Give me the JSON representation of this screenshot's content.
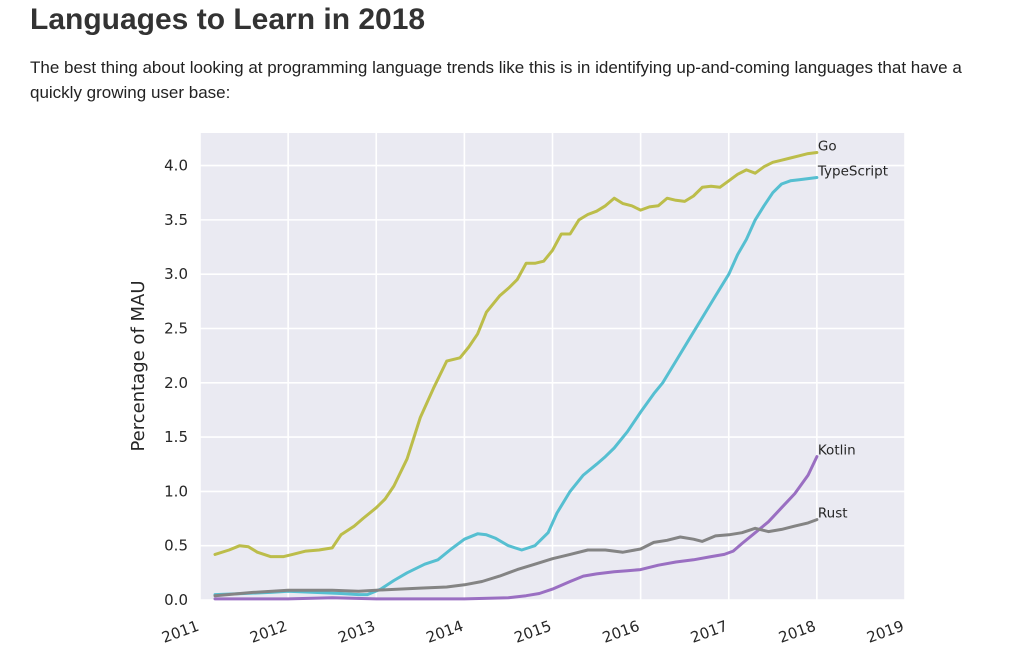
{
  "page": {
    "title": "Languages to Learn in 2018",
    "intro": "The best thing about looking at programming language trends like this is in identifying up-and-coming languages that have a quickly growing user base:"
  },
  "chart_data": {
    "type": "line",
    "title": "",
    "xlabel": "",
    "ylabel": "Percentage of MAU",
    "xlim": [
      2011,
      2019
    ],
    "ylim": [
      0,
      4.3
    ],
    "xticks": [
      2011,
      2012,
      2013,
      2014,
      2015,
      2016,
      2017,
      2018,
      2019
    ],
    "yticks": [
      0.0,
      0.5,
      1.0,
      1.5,
      2.0,
      2.5,
      3.0,
      3.5,
      4.0
    ],
    "grid": true,
    "legend": "none (series labeled at line ends)",
    "series": [
      {
        "name": "Go",
        "color": "#bcbd4a",
        "x": [
          2011.17,
          2011.33,
          2011.45,
          2011.55,
          2011.65,
          2011.8,
          2011.95,
          2012.05,
          2012.2,
          2012.35,
          2012.5,
          2012.6,
          2012.75,
          2012.85,
          2013.0,
          2013.1,
          2013.2,
          2013.35,
          2013.5,
          2013.65,
          2013.8,
          2013.95,
          2014.05,
          2014.15,
          2014.25,
          2014.4,
          2014.5,
          2014.6,
          2014.7,
          2014.8,
          2014.9,
          2015.0,
          2015.1,
          2015.2,
          2015.3,
          2015.4,
          2015.5,
          2015.6,
          2015.7,
          2015.8,
          2015.9,
          2016.0,
          2016.1,
          2016.2,
          2016.3,
          2016.4,
          2016.5,
          2016.6,
          2016.7,
          2016.8,
          2016.9,
          2017.0,
          2017.1,
          2017.2,
          2017.3,
          2017.4,
          2017.5,
          2017.6,
          2017.7,
          2017.8,
          2017.9,
          2018.0
        ],
        "values": [
          0.42,
          0.46,
          0.5,
          0.49,
          0.44,
          0.4,
          0.4,
          0.42,
          0.45,
          0.46,
          0.48,
          0.6,
          0.68,
          0.75,
          0.85,
          0.93,
          1.05,
          1.3,
          1.68,
          1.95,
          2.2,
          2.23,
          2.33,
          2.45,
          2.65,
          2.8,
          2.87,
          2.95,
          3.1,
          3.1,
          3.12,
          3.22,
          3.37,
          3.37,
          3.5,
          3.55,
          3.58,
          3.63,
          3.7,
          3.65,
          3.63,
          3.59,
          3.62,
          3.63,
          3.7,
          3.68,
          3.67,
          3.72,
          3.8,
          3.81,
          3.8,
          3.86,
          3.92,
          3.96,
          3.93,
          3.99,
          4.03,
          4.05,
          4.07,
          4.09,
          4.11,
          4.12
        ]
      },
      {
        "name": "TypeScript",
        "color": "#56bfd1",
        "x": [
          2011.17,
          2011.5,
          2011.8,
          2012.0,
          2012.3,
          2012.6,
          2012.8,
          2012.9,
          2013.05,
          2013.2,
          2013.35,
          2013.55,
          2013.7,
          2013.85,
          2014.0,
          2014.15,
          2014.25,
          2014.35,
          2014.5,
          2014.65,
          2014.8,
          2014.95,
          2015.05,
          2015.2,
          2015.35,
          2015.5,
          2015.6,
          2015.7,
          2015.85,
          2016.0,
          2016.15,
          2016.25,
          2016.4,
          2016.55,
          2016.7,
          2016.85,
          2017.0,
          2017.1,
          2017.2,
          2017.3,
          2017.4,
          2017.5,
          2017.6,
          2017.7,
          2017.8,
          2017.9,
          2018.0
        ],
        "values": [
          0.05,
          0.06,
          0.07,
          0.08,
          0.07,
          0.06,
          0.05,
          0.05,
          0.1,
          0.18,
          0.25,
          0.33,
          0.37,
          0.47,
          0.56,
          0.61,
          0.6,
          0.57,
          0.5,
          0.46,
          0.5,
          0.62,
          0.8,
          1.0,
          1.15,
          1.25,
          1.32,
          1.4,
          1.55,
          1.73,
          1.9,
          2.0,
          2.2,
          2.4,
          2.6,
          2.8,
          3.0,
          3.18,
          3.32,
          3.5,
          3.63,
          3.75,
          3.83,
          3.86,
          3.87,
          3.88,
          3.89
        ]
      },
      {
        "name": "Kotlin",
        "color": "#9a6fc2",
        "x": [
          2011.17,
          2012.0,
          2012.5,
          2013.0,
          2013.5,
          2014.0,
          2014.5,
          2014.7,
          2014.85,
          2015.0,
          2015.2,
          2015.35,
          2015.5,
          2015.7,
          2015.85,
          2016.0,
          2016.2,
          2016.4,
          2016.6,
          2016.8,
          2016.95,
          2017.05,
          2017.15,
          2017.3,
          2017.45,
          2017.6,
          2017.75,
          2017.9,
          2018.0
        ],
        "values": [
          0.01,
          0.01,
          0.02,
          0.01,
          0.01,
          0.01,
          0.02,
          0.04,
          0.06,
          0.1,
          0.17,
          0.22,
          0.24,
          0.26,
          0.27,
          0.28,
          0.32,
          0.35,
          0.37,
          0.4,
          0.42,
          0.45,
          0.52,
          0.62,
          0.72,
          0.85,
          0.98,
          1.15,
          1.32
        ]
      },
      {
        "name": "Rust",
        "color": "#848484",
        "x": [
          2011.17,
          2011.6,
          2012.0,
          2012.5,
          2012.8,
          2013.0,
          2013.5,
          2013.8,
          2014.0,
          2014.2,
          2014.4,
          2014.6,
          2014.8,
          2015.0,
          2015.2,
          2015.4,
          2015.6,
          2015.8,
          2016.0,
          2016.15,
          2016.3,
          2016.45,
          2016.6,
          2016.7,
          2016.85,
          2017.0,
          2017.15,
          2017.3,
          2017.45,
          2017.6,
          2017.75,
          2017.9,
          2018.0
        ],
        "values": [
          0.04,
          0.07,
          0.09,
          0.09,
          0.08,
          0.09,
          0.11,
          0.12,
          0.14,
          0.17,
          0.22,
          0.28,
          0.33,
          0.38,
          0.42,
          0.46,
          0.46,
          0.44,
          0.47,
          0.53,
          0.55,
          0.58,
          0.56,
          0.54,
          0.59,
          0.6,
          0.62,
          0.66,
          0.63,
          0.65,
          0.68,
          0.71,
          0.74
        ]
      }
    ]
  }
}
